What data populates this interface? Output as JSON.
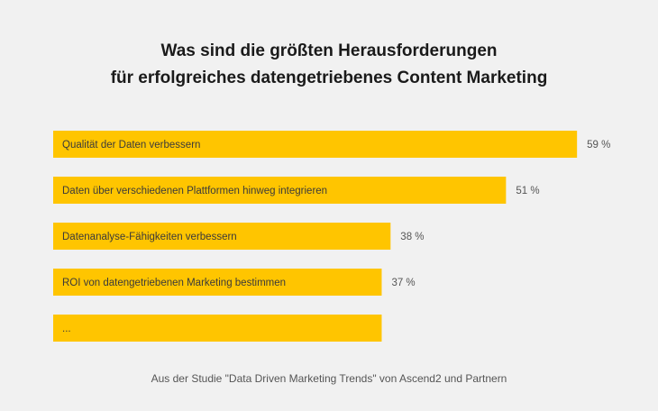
{
  "colors": {
    "background": "#f1f1f1",
    "bar": "#ffc500",
    "title_text": "#1a1a1a",
    "label_text": "#3a3a3a",
    "value_text": "#555555"
  },
  "chart_data": {
    "type": "bar",
    "orientation": "horizontal",
    "title_lines": [
      "Was sind die größten Herausforderungen",
      "für erfolgreiches datengetriebenes Content Marketing"
    ],
    "categories": [
      "Qualität der Daten verbessern",
      "Daten über verschiedenen Plattformen hinweg integrieren",
      "Datenanalyse-Fähigkeiten verbessern",
      "ROI von datengetriebenen Marketing bestimmen",
      "..."
    ],
    "values": [
      59,
      51,
      38,
      37,
      37
    ],
    "value_labels": [
      "59 %",
      "51 %",
      "38 %",
      "37 %",
      ""
    ],
    "unit": "%",
    "xlim": [
      0,
      100
    ],
    "grid": false,
    "source": "Aus der Studie \"Data Driven Marketing Trends\" von Ascend2 und Partnern"
  }
}
